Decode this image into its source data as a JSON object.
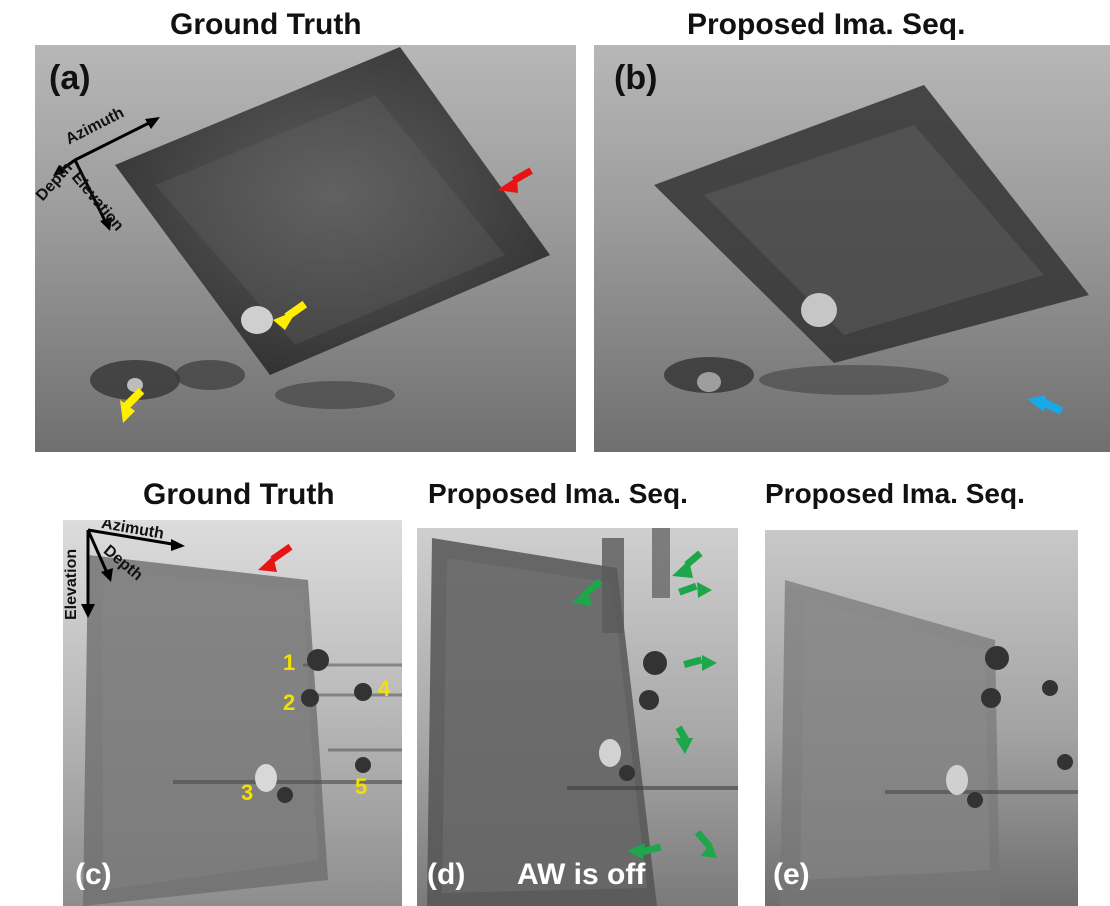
{
  "titles": {
    "a": "Ground Truth",
    "b": "Proposed Ima. Seq.",
    "c": "Ground Truth",
    "d": "Proposed Ima. Seq.",
    "e": "Proposed Ima. Seq."
  },
  "panels": {
    "a": {
      "label": "(a)"
    },
    "b": {
      "label": "(b)"
    },
    "c": {
      "label": "(c)"
    },
    "d": {
      "label": "(d)",
      "caption": "AW is off"
    },
    "e": {
      "label": "(e)"
    }
  },
  "axes_top": {
    "azimuth": "Azimuth",
    "depth": "Depth",
    "elevation": "Elevation"
  },
  "axes_bottom": {
    "azimuth": "Azimuth",
    "depth": "Depth",
    "elevation": "Elevation"
  },
  "numbers": [
    "1",
    "2",
    "3",
    "4",
    "5"
  ],
  "colors": {
    "arrow_yellow": "#ffee00",
    "arrow_red": "#e81414",
    "arrow_blue": "#19a9e8",
    "arrow_green": "#1ea64a",
    "number_yellow": "#f4e000"
  }
}
